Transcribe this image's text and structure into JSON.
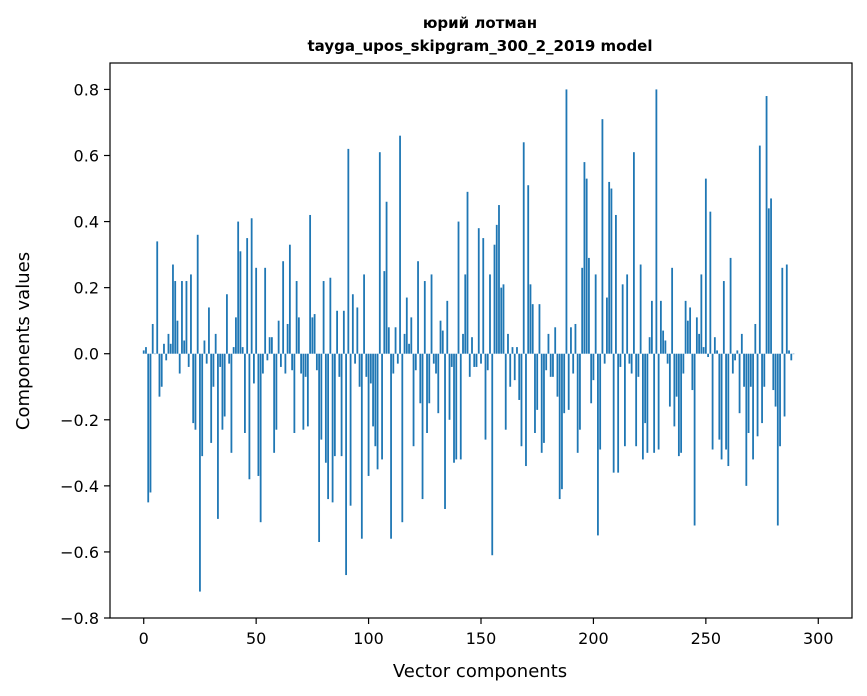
{
  "chart_data": {
    "type": "bar",
    "title": "юрий лотман",
    "subtitle": "tayga_upos_skipgram_300_2_2019 model",
    "xlabel": "Vector components",
    "ylabel": "Components values",
    "xlim": [
      -15,
      315
    ],
    "ylim": [
      -0.8,
      0.88
    ],
    "xticks": [
      0,
      50,
      100,
      150,
      200,
      250,
      300
    ],
    "yticks": [
      -0.8,
      -0.6,
      -0.4,
      -0.2,
      0.0,
      0.2,
      0.4,
      0.6,
      0.8
    ],
    "ytick_labels": [
      "−0.8",
      "−0.6",
      "−0.4",
      "−0.2",
      "0.0",
      "0.2",
      "0.4",
      "0.6",
      "0.8"
    ],
    "grid": false,
    "bar_color": "#1f77b4",
    "values": [
      0.01,
      0.02,
      -0.45,
      -0.42,
      0.09,
      0.0,
      0.34,
      -0.13,
      -0.1,
      0.03,
      -0.02,
      0.06,
      0.03,
      0.27,
      0.22,
      0.1,
      -0.06,
      0.22,
      0.04,
      0.22,
      -0.04,
      0.24,
      -0.21,
      -0.23,
      0.36,
      -0.72,
      -0.31,
      0.04,
      -0.03,
      0.14,
      -0.27,
      -0.1,
      0.06,
      -0.5,
      -0.04,
      -0.23,
      -0.19,
      0.18,
      -0.03,
      -0.3,
      0.02,
      0.11,
      0.4,
      0.31,
      0.02,
      -0.24,
      0.35,
      -0.38,
      0.41,
      -0.09,
      0.26,
      -0.37,
      -0.51,
      -0.06,
      0.26,
      -0.02,
      0.05,
      0.05,
      -0.3,
      -0.23,
      0.1,
      -0.04,
      0.28,
      -0.06,
      0.09,
      0.33,
      -0.05,
      -0.24,
      0.22,
      0.11,
      -0.06,
      -0.23,
      -0.07,
      -0.22,
      0.42,
      0.11,
      0.12,
      -0.05,
      -0.57,
      -0.26,
      0.22,
      -0.33,
      -0.44,
      0.23,
      -0.45,
      -0.31,
      0.13,
      -0.07,
      -0.31,
      0.13,
      -0.67,
      0.62,
      -0.46,
      0.18,
      -0.03,
      0.14,
      -0.1,
      -0.56,
      0.24,
      -0.07,
      -0.37,
      -0.09,
      -0.22,
      -0.28,
      -0.35,
      0.61,
      -0.32,
      0.25,
      0.46,
      0.08,
      -0.56,
      -0.06,
      0.08,
      -0.03,
      0.66,
      -0.51,
      0.06,
      0.17,
      0.03,
      0.11,
      -0.28,
      -0.05,
      0.28,
      -0.15,
      -0.44,
      0.22,
      -0.24,
      -0.15,
      0.24,
      -0.03,
      -0.06,
      -0.18,
      0.1,
      0.07,
      -0.47,
      0.16,
      -0.2,
      -0.04,
      -0.33,
      -0.32,
      0.4,
      -0.32,
      0.06,
      0.24,
      0.49,
      -0.07,
      0.05,
      -0.04,
      -0.04,
      0.38,
      -0.03,
      0.35,
      -0.26,
      -0.05,
      0.24,
      -0.61,
      0.33,
      0.39,
      0.45,
      0.2,
      0.21,
      -0.23,
      0.06,
      -0.1,
      0.02,
      -0.08,
      0.02,
      -0.14,
      -0.28,
      0.64,
      -0.34,
      0.51,
      0.21,
      0.15,
      -0.24,
      -0.17,
      0.15,
      -0.3,
      -0.27,
      -0.05,
      0.06,
      -0.07,
      -0.07,
      0.08,
      -0.13,
      -0.44,
      -0.41,
      -0.18,
      0.8,
      -0.17,
      0.08,
      -0.06,
      0.09,
      -0.3,
      -0.23,
      0.26,
      0.58,
      0.53,
      0.29,
      -0.15,
      -0.08,
      0.24,
      -0.55,
      -0.29,
      0.71,
      -0.03,
      0.17,
      0.52,
      0.5,
      -0.36,
      0.42,
      -0.36,
      -0.04,
      0.21,
      -0.28,
      0.24,
      -0.03,
      -0.06,
      0.61,
      -0.28,
      -0.07,
      0.27,
      -0.32,
      -0.21,
      -0.3,
      0.05,
      0.16,
      -0.3,
      0.8,
      -0.29,
      0.16,
      0.07,
      0.04,
      -0.03,
      -0.16,
      0.26,
      -0.22,
      -0.13,
      -0.31,
      -0.3,
      -0.06,
      0.16,
      0.1,
      0.14,
      -0.11,
      -0.52,
      0.11,
      0.06,
      0.24,
      0.02,
      0.53,
      -0.01,
      0.43,
      -0.29,
      0.05,
      0.01,
      -0.26,
      -0.32,
      0.22,
      -0.29,
      -0.34,
      0.29,
      -0.06,
      -0.02,
      0.01,
      -0.18,
      0.06,
      -0.1,
      -0.4,
      -0.24,
      -0.1,
      -0.32,
      0.09,
      -0.25,
      0.63,
      -0.21,
      -0.1,
      0.78,
      0.44,
      0.47,
      -0.11,
      -0.16,
      -0.52,
      -0.28,
      0.26,
      -0.19,
      0.27,
      0.01,
      -0.02,
      0.0
    ]
  }
}
